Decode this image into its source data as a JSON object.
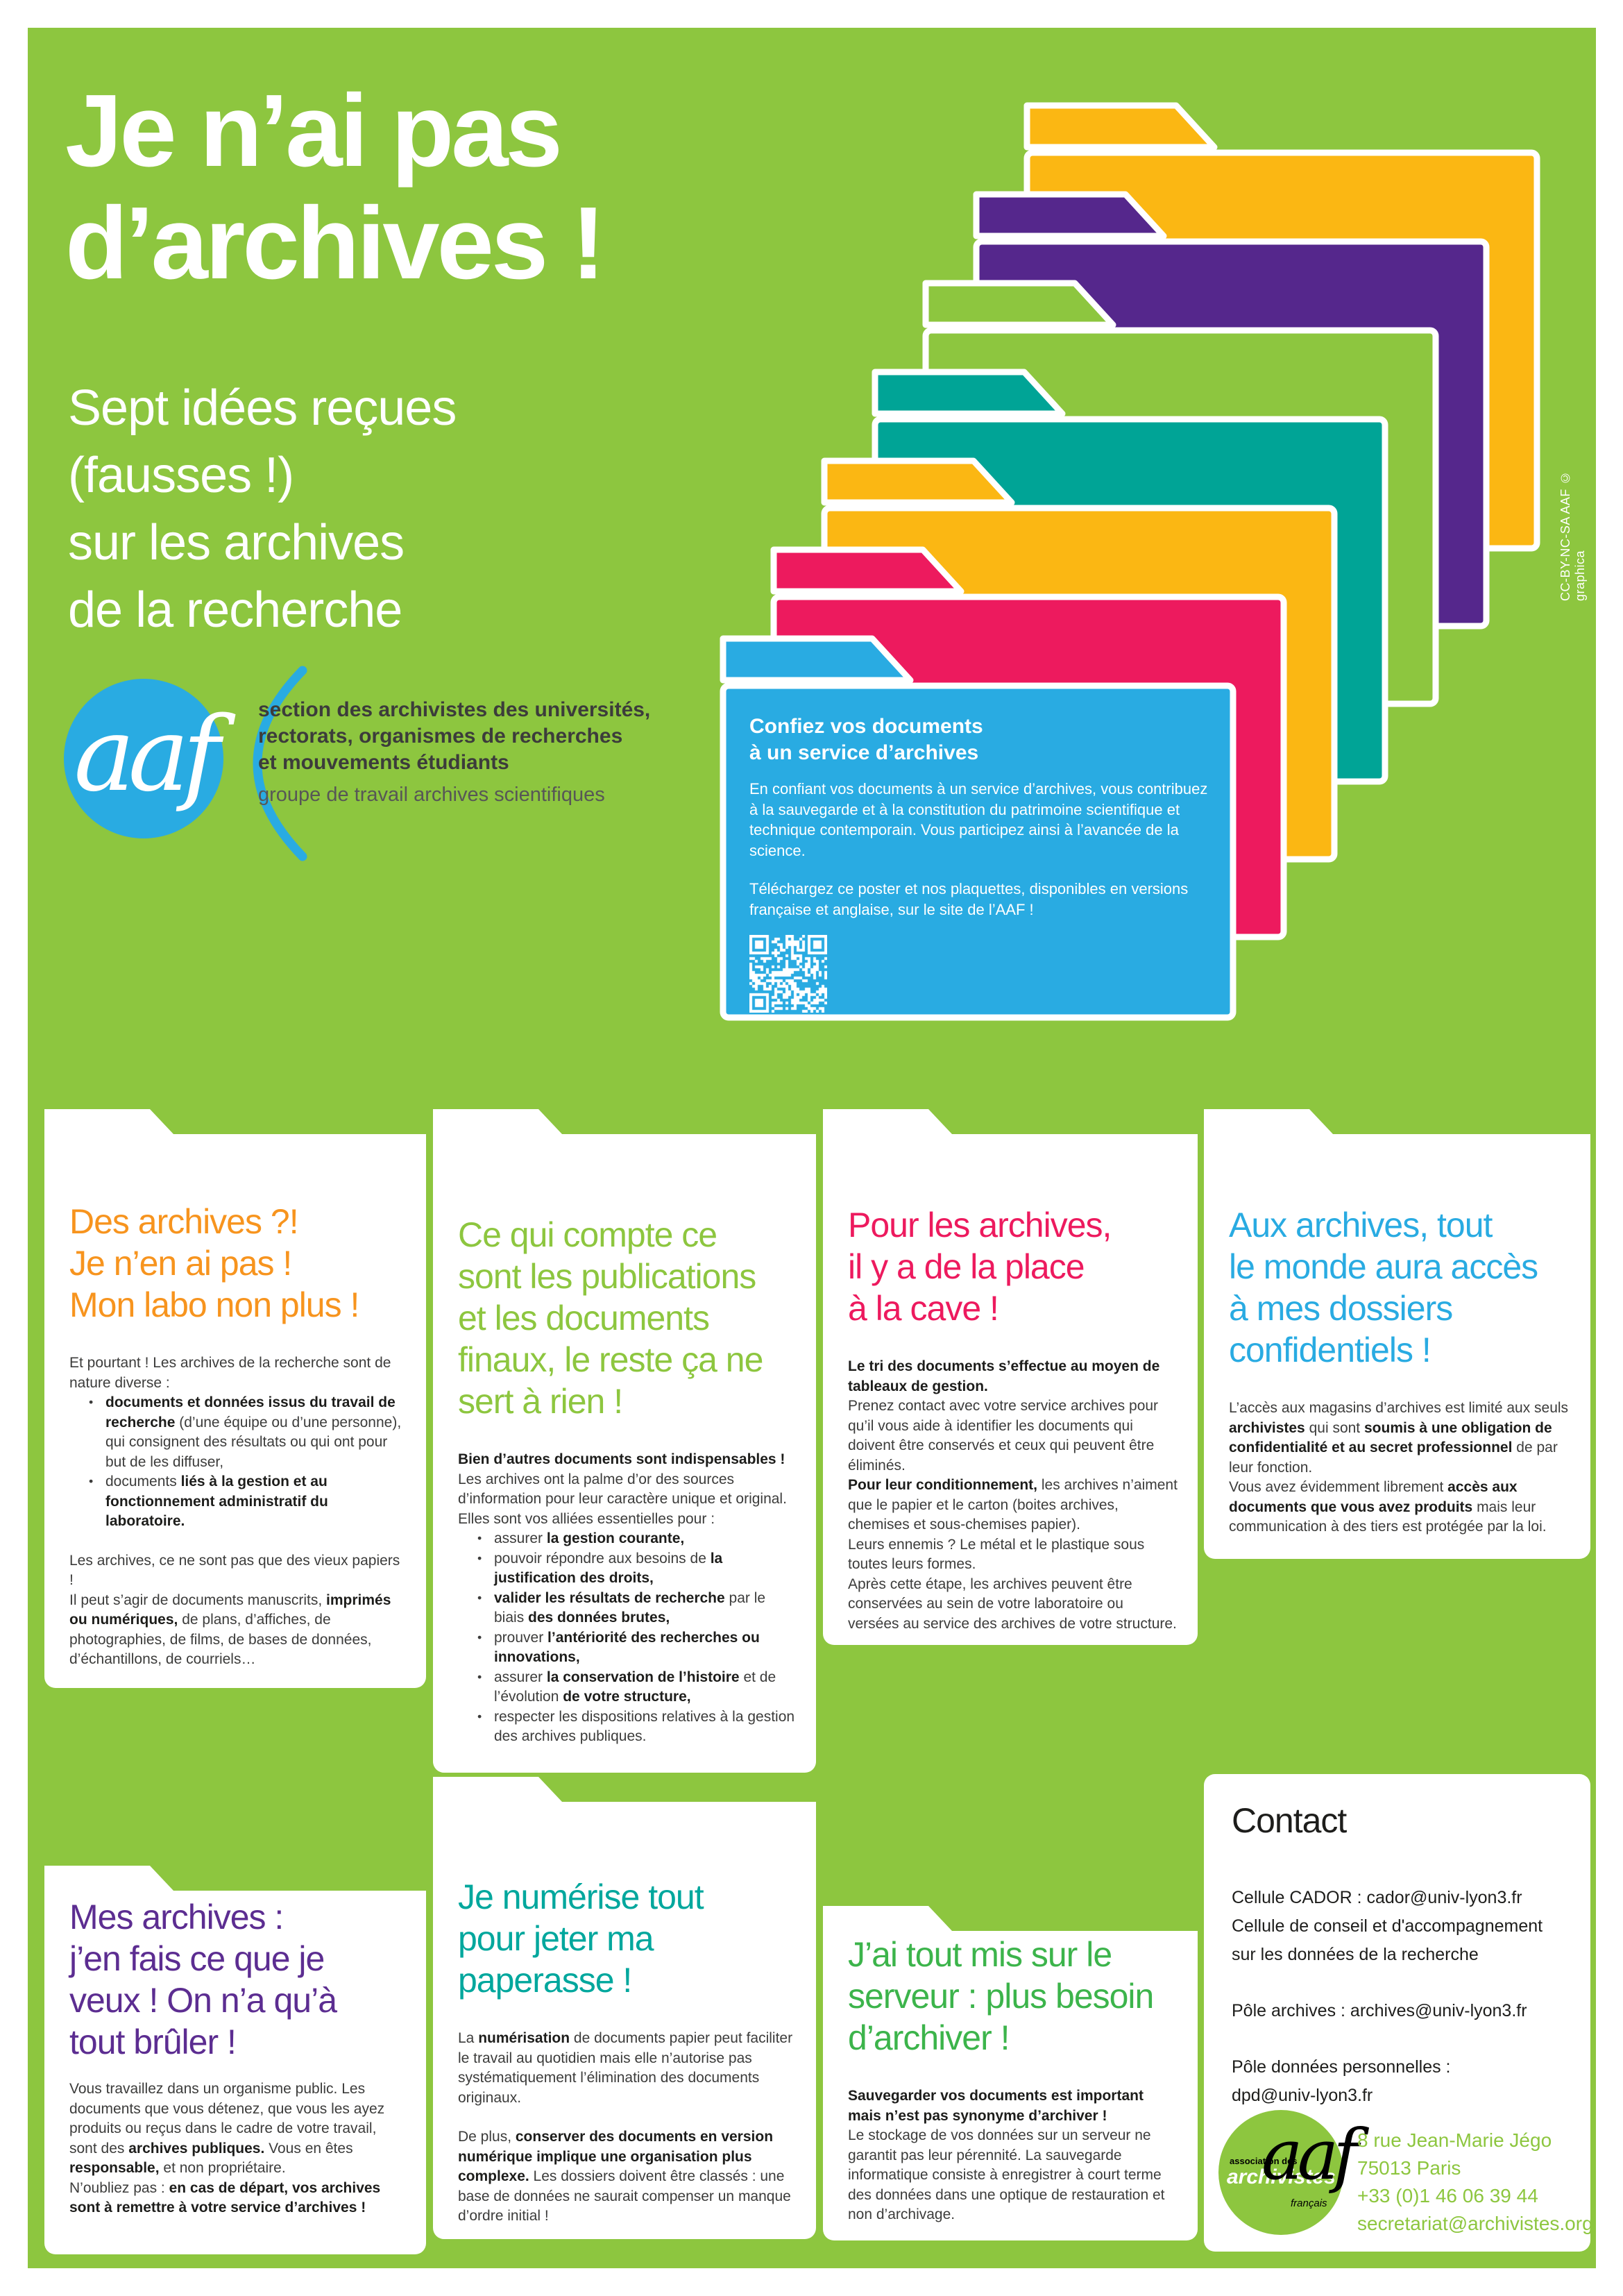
{
  "title": "Je n’ai pas\nd’archives !",
  "subtitle": "Sept idées reçues\n(fausses !)\nsur les archives\nde la recherche",
  "credit_vertical": "CC-BY-NC-SA AAF © graphica",
  "org": {
    "logo_text": "aaf",
    "name_bold": "section des archivistes des universités,\nrectorats, organismes de recherches\net mouvements étudiants",
    "name_light": "groupe de travail archives scientifiques"
  },
  "callout": {
    "heading": "Confiez vos documents\nà un service d’archives",
    "body1": "En confiant vos documents à un service d’archives, vous contribuez à la sauvegarde et à la constitution du patrimoine scientifique et technique contemporain. Vous participez ainsi à l’avancée de la science.",
    "body2": "Téléchargez ce poster et nos plaquettes, disponibles en versions française et anglaise, sur le site de l’AAF !"
  },
  "cards": [
    {
      "heading": "Des archives ?!\nJe n’en ai pas !\nMon labo non plus !",
      "color": "#F7941E",
      "paragraphs": [
        "Et pourtant ! Les archives de la recherche sont de nature diverse :",
        "Les archives, ce ne sont pas que des vieux papiers !",
        "Il peut s’agir de documents manuscrits, **imprimés ou numériques,** de plans, d’affiches, de photographies, de films, de bases de données, d’échantillons, de courriels…"
      ],
      "bullets": [
        "**documents et données issus du travail de recherche** (d’une équipe ou d’une personne), qui consignent des résultats ou qui ont pour but de les diffuser,",
        "documents **liés à la gestion et au fonctionnement administratif du laboratoire.**"
      ]
    },
    {
      "heading": "Ce qui compte ce\nsont les publications\net les documents\nfinaux, le reste ça ne\nsert à rien !",
      "color": "#8DC63F",
      "paragraphs": [
        "**Bien d’autres documents sont indispensables !**",
        "Les archives ont la palme d’or des sources d’information pour leur caractère unique et original. Elles sont vos alliées essentielles pour :"
      ],
      "bullets": [
        "assurer **la gestion courante,**",
        "pouvoir répondre aux besoins de **la justification des droits,**",
        "**valider les résultats de recherche** par le biais **des données brutes,**",
        "prouver **l’antériorité des recherches ou innovations,**",
        "assurer **la conservation de l’histoire** et de l’évolution **de votre structure,**",
        "respecter les dispositions relatives à la gestion des archives publiques."
      ]
    },
    {
      "heading": "Pour les archives,\nil y a de la place\nà la cave !",
      "color": "#ED1A5E",
      "paragraphs": [
        "**Le tri des documents s’effectue au moyen de tableaux de gestion.**",
        "Prenez contact avec votre service archives pour qu’il vous aide à identifier les documents qui doivent être conservés et ceux qui peuvent être éliminés.",
        "**Pour leur conditionnement,** les archives n’aiment que le papier et le carton (boites archives, chemises et sous-chemises papier).",
        "Leurs ennemis ? Le métal et le plastique sous toutes leurs formes.",
        "Après cette étape, les archives peuvent être conservées au sein de votre laboratoire ou versées au service des archives de votre structure."
      ],
      "bullets": []
    },
    {
      "heading": "Aux archives, tout\nle monde aura accès\nà mes dossiers\nconfidentiels !",
      "color": "#29ABE2",
      "paragraphs": [
        "L’accès aux magasins d’archives est limité aux seuls **archivistes** qui sont **soumis à une obligation de confidentialité et au secret professionnel** de par leur fonction.",
        "Vous avez évidemment librement **accès aux documents que vous avez produits** mais leur communication à des tiers est protégée par la loi."
      ],
      "bullets": []
    },
    {
      "heading": "Mes archives :\nj’en fais ce que je\nveux ! On n’a qu’à\ntout brûler !",
      "color": "#5C2D91",
      "paragraphs": [
        "Vous travaillez dans un organisme public. Les documents que vous détenez, que vous les ayez produits ou reçus dans le cadre de votre travail, sont des **archives publiques.** Vous en êtes **responsable,** et non propriétaire.",
        "N’oubliez pas : **en cas de départ, vos archives sont à remettre à votre service d’archives !**"
      ],
      "bullets": []
    },
    {
      "heading": "Je numérise tout\npour jeter ma\npaperasse !",
      "color": "#00A79D",
      "paragraphs": [
        "La **numérisation** de documents papier peut faciliter le travail au quotidien mais elle n’autorise pas systématiquement l’élimination des documents originaux.",
        "De plus, **conserver des documents en version numérique implique une organisation plus complexe.** Les dossiers doivent être classés : une base de données ne saurait compenser un manque d’ordre initial !"
      ],
      "bullets": []
    },
    {
      "heading": "J’ai tout mis sur le\nserveur : plus besoin\nd’archiver !",
      "color": "#3CB44B",
      "paragraphs": [
        "**Sauvegarder vos documents est important mais n’est pas synonyme d’archiver !**",
        "Le stockage de vos données sur un serveur ne garantit pas leur pérennité. La sauvegarde informatique consiste à enregistrer à court terme des données dans une optique de restauration et non d’archivage."
      ],
      "bullets": []
    }
  ],
  "contact": {
    "heading": "Contact",
    "block1": "Cellule CADOR : cador@univ-lyon3.fr\nCellule de conseil et d'accompagnement\nsur les données de la recherche",
    "block2": "Pôle archives : archives@univ-lyon3.fr",
    "block3": "Pôle données personnelles :\ndpd@univ-lyon3.fr"
  },
  "footer": {
    "assoc_small": "association des",
    "assoc_mid": "archivistes",
    "assoc_tail": "français",
    "logo_text": "aaf",
    "address": "8 rue Jean-Marie Jégo\n75013 Paris\n+33 (0)1 46 06 39 44\nsecretariat@archivistes.org"
  },
  "palette": {
    "bg_green": "#8DC63F",
    "blue": "#29ABE2",
    "folder_stack": [
      "#FBB713",
      "#55278C",
      "#8DC63F",
      "#00A496",
      "#FBB713",
      "#ED1A5E",
      "#29ABE2"
    ],
    "heading_orange": "#F7941E",
    "heading_pink": "#ED1A5E",
    "heading_purple": "#5C2D91",
    "heading_teal": "#00A79D",
    "heading_green_dark": "#3CB44B",
    "text_dark": "#3C3C3B",
    "text_black": "#1D1D1B"
  }
}
